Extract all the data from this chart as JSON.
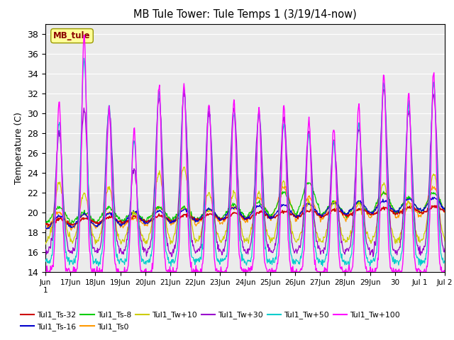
{
  "title": "MB Tule Tower: Tule Temps 1 (3/19/14-now)",
  "ylabel": "Temperature (C)",
  "ylim": [
    14,
    39
  ],
  "yticks": [
    14,
    16,
    18,
    20,
    22,
    24,
    26,
    28,
    30,
    32,
    34,
    36,
    38
  ],
  "legend_box_label": "MB_tule",
  "series": [
    {
      "label": "Tul1_Ts-32",
      "color": "#cc0000"
    },
    {
      "label": "Tul1_Ts-16",
      "color": "#0000cc"
    },
    {
      "label": "Tul1_Ts-8",
      "color": "#00cc00"
    },
    {
      "label": "Tul1_Ts0",
      "color": "#ff9900"
    },
    {
      "label": "Tul1_Tw+10",
      "color": "#cccc00"
    },
    {
      "label": "Tul1_Tw+30",
      "color": "#9900cc"
    },
    {
      "label": "Tul1_Tw+50",
      "color": "#00cccc"
    },
    {
      "label": "Tul1_Tw+100",
      "color": "#ff00ff"
    }
  ],
  "tick_labels": [
    "Jun\n1",
    "17Jun",
    "18Jun",
    "19Jun",
    "20Jun",
    "21Jun",
    "22Jun",
    "23Jun",
    "24Jun",
    "25Jun",
    "26Jun",
    "27Jun",
    "28Jun",
    "29Jun",
    "30",
    "Jul 1",
    "Jul 2"
  ],
  "background_color": "#ffffff",
  "plot_bg_color": "#ebebeb",
  "grid_color": "#ffffff",
  "num_days": 16,
  "figsize": [
    6.4,
    4.8
  ],
  "dpi": 100
}
